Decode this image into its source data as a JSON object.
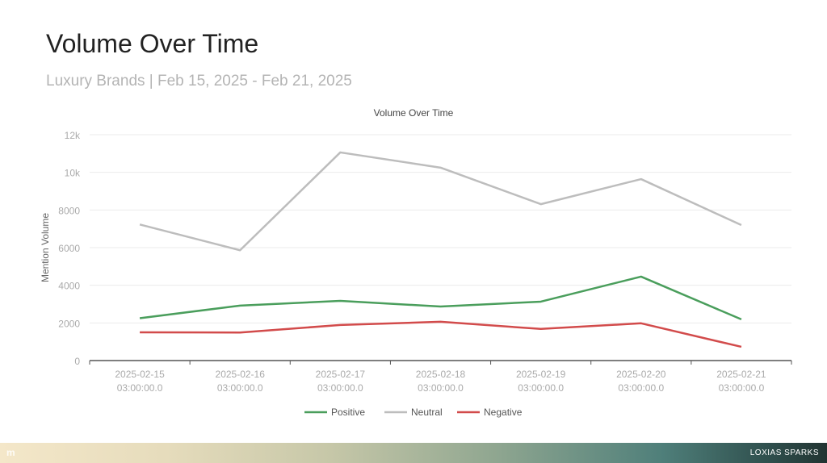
{
  "header": {
    "title": "Volume Over Time",
    "subtitle": "Luxury Brands | Feb 15, 2025 - Feb 21, 2025"
  },
  "footer": {
    "logo": "m",
    "brand": "LOXIAS SPARKS"
  },
  "chart_data": {
    "type": "line",
    "title": "Volume Over Time",
    "xlabel": "",
    "ylabel": "Mention Volume",
    "ylim": [
      0,
      12000
    ],
    "yticks": [
      0,
      2000,
      4000,
      6000,
      8000,
      10000,
      12000
    ],
    "ytick_labels": [
      "0",
      "2000",
      "4000",
      "6000",
      "8000",
      "10k",
      "12k"
    ],
    "categories": [
      [
        "2025-02-15",
        "03:00:00.0"
      ],
      [
        "2025-02-16",
        "03:00:00.0"
      ],
      [
        "2025-02-17",
        "03:00:00.0"
      ],
      [
        "2025-02-18",
        "03:00:00.0"
      ],
      [
        "2025-02-19",
        "03:00:00.0"
      ],
      [
        "2025-02-20",
        "03:00:00.0"
      ],
      [
        "2025-02-21",
        "03:00:00.0"
      ]
    ],
    "series": [
      {
        "name": "Positive",
        "color": "#4a9e5c",
        "values": [
          2250,
          2920,
          3170,
          2870,
          3130,
          4460,
          2190
        ]
      },
      {
        "name": "Neutral",
        "color": "#bdbdbd",
        "values": [
          7230,
          5860,
          11060,
          10250,
          8310,
          9640,
          7200
        ]
      },
      {
        "name": "Negative",
        "color": "#d24b4b",
        "values": [
          1500,
          1490,
          1890,
          2060,
          1680,
          1980,
          730
        ]
      }
    ],
    "grid": true,
    "legend": "bottom"
  }
}
